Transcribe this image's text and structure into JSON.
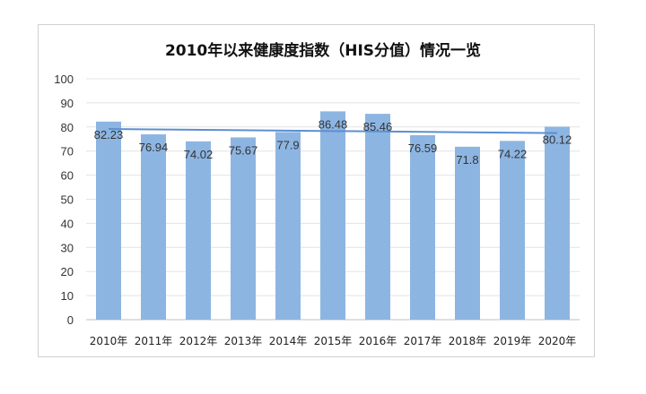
{
  "chart_data": {
    "type": "bar",
    "title": "2010年以来健康度指数（HIS分值）情况一览",
    "categories": [
      "2010年",
      "2011年",
      "2012年",
      "2013年",
      "2014年",
      "2015年",
      "2016年",
      "2017年",
      "2018年",
      "2019年",
      "2020年"
    ],
    "values": [
      82.23,
      76.94,
      74.02,
      75.67,
      77.9,
      86.48,
      85.46,
      76.59,
      71.8,
      74.22,
      80.12
    ],
    "data_labels": [
      "82.23",
      "76.94",
      "74.02",
      "75.67",
      "77.9",
      "86.48",
      "85.46",
      "76.59",
      "71.8",
      "74.22",
      "80.12"
    ],
    "ylim": [
      0,
      100
    ],
    "yticks": [
      0,
      10,
      20,
      30,
      40,
      50,
      60,
      70,
      80,
      90,
      100
    ],
    "trendline": "linear",
    "grid": true,
    "bar_color": "#8db5e2",
    "trend_color": "#5b8fd1"
  }
}
